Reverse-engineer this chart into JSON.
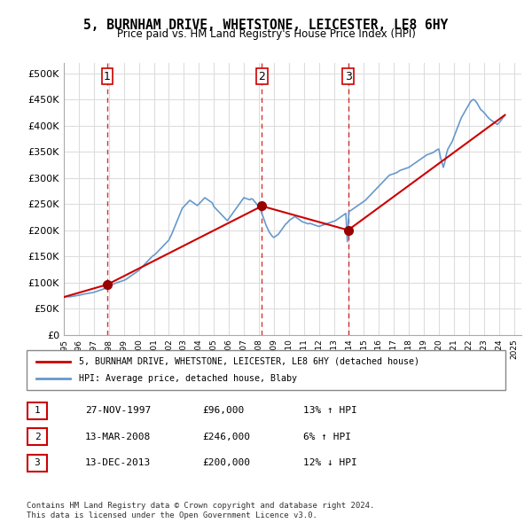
{
  "title": "5, BURNHAM DRIVE, WHETSTONE, LEICESTER, LE8 6HY",
  "subtitle": "Price paid vs. HM Land Registry's House Price Index (HPI)",
  "ylabel_values": [
    "£0",
    "£50K",
    "£100K",
    "£150K",
    "£200K",
    "£250K",
    "£300K",
    "£350K",
    "£400K",
    "£450K",
    "£500K"
  ],
  "yticks": [
    0,
    50000,
    100000,
    150000,
    200000,
    250000,
    300000,
    350000,
    400000,
    450000,
    500000
  ],
  "ylim": [
    0,
    520000
  ],
  "xmin": 1995.0,
  "xmax": 2025.5,
  "sales": [
    {
      "year": 1997.9,
      "price": 96000,
      "label": "1"
    },
    {
      "year": 2008.2,
      "price": 246000,
      "label": "2"
    },
    {
      "year": 2013.95,
      "price": 200000,
      "label": "3"
    }
  ],
  "vlines": [
    1997.9,
    2008.2,
    2013.95
  ],
  "hpi_color": "#6699cc",
  "price_color": "#cc0000",
  "dot_color": "#990000",
  "vline_color": "#cc0000",
  "grid_color": "#dddddd",
  "background_color": "#ffffff",
  "legend_entries": [
    "5, BURNHAM DRIVE, WHETSTONE, LEICESTER, LE8 6HY (detached house)",
    "HPI: Average price, detached house, Blaby"
  ],
  "table_rows": [
    {
      "num": "1",
      "date": "27-NOV-1997",
      "price": "£96,000",
      "hpi": "13% ↑ HPI"
    },
    {
      "num": "2",
      "date": "13-MAR-2008",
      "price": "£246,000",
      "hpi": "6% ↑ HPI"
    },
    {
      "num": "3",
      "date": "13-DEC-2013",
      "price": "£200,000",
      "hpi": "12% ↓ HPI"
    }
  ],
  "footer": "Contains HM Land Registry data © Crown copyright and database right 2024.\nThis data is licensed under the Open Government Licence v3.0.",
  "hpi_data_x": [
    1995.0,
    1995.1,
    1995.2,
    1995.3,
    1995.4,
    1995.5,
    1995.6,
    1995.7,
    1995.8,
    1995.9,
    1996.0,
    1996.1,
    1996.2,
    1996.3,
    1996.4,
    1996.5,
    1996.6,
    1996.7,
    1996.8,
    1996.9,
    1997.0,
    1997.1,
    1997.2,
    1997.3,
    1997.4,
    1997.5,
    1997.6,
    1997.7,
    1997.8,
    1997.9,
    1998.0,
    1998.1,
    1998.2,
    1998.3,
    1998.4,
    1998.5,
    1998.6,
    1998.7,
    1998.8,
    1998.9,
    1999.0,
    1999.1,
    1999.2,
    1999.3,
    1999.4,
    1999.5,
    1999.6,
    1999.7,
    1999.8,
    1999.9,
    2000.0,
    2000.1,
    2000.2,
    2000.3,
    2000.4,
    2000.5,
    2000.6,
    2000.7,
    2000.8,
    2000.9,
    2001.0,
    2001.1,
    2001.2,
    2001.3,
    2001.4,
    2001.5,
    2001.6,
    2001.7,
    2001.8,
    2001.9,
    2002.0,
    2002.1,
    2002.2,
    2002.3,
    2002.4,
    2002.5,
    2002.6,
    2002.7,
    2002.8,
    2002.9,
    2003.0,
    2003.1,
    2003.2,
    2003.3,
    2003.4,
    2003.5,
    2003.6,
    2003.7,
    2003.8,
    2003.9,
    2004.0,
    2004.1,
    2004.2,
    2004.3,
    2004.4,
    2004.5,
    2004.6,
    2004.7,
    2004.8,
    2004.9,
    2005.0,
    2005.1,
    2005.2,
    2005.3,
    2005.4,
    2005.5,
    2005.6,
    2005.7,
    2005.8,
    2005.9,
    2006.0,
    2006.1,
    2006.2,
    2006.3,
    2006.4,
    2006.5,
    2006.6,
    2006.7,
    2006.8,
    2006.9,
    2007.0,
    2007.1,
    2007.2,
    2007.3,
    2007.4,
    2007.5,
    2007.6,
    2007.7,
    2007.8,
    2007.9,
    2008.0,
    2008.1,
    2008.2,
    2008.3,
    2008.4,
    2008.5,
    2008.6,
    2008.7,
    2008.8,
    2008.9,
    2009.0,
    2009.1,
    2009.2,
    2009.3,
    2009.4,
    2009.5,
    2009.6,
    2009.7,
    2009.8,
    2009.9,
    2010.0,
    2010.1,
    2010.2,
    2010.3,
    2010.4,
    2010.5,
    2010.6,
    2010.7,
    2010.8,
    2010.9,
    2011.0,
    2011.1,
    2011.2,
    2011.3,
    2011.4,
    2011.5,
    2011.6,
    2011.7,
    2011.8,
    2011.9,
    2012.0,
    2012.1,
    2012.2,
    2012.3,
    2012.4,
    2012.5,
    2012.6,
    2012.7,
    2012.8,
    2012.9,
    2013.0,
    2013.1,
    2013.2,
    2013.3,
    2013.4,
    2013.5,
    2013.6,
    2013.7,
    2013.8,
    2013.9,
    2014.0,
    2014.1,
    2014.2,
    2014.3,
    2014.4,
    2014.5,
    2014.6,
    2014.7,
    2014.8,
    2014.9,
    2015.0,
    2015.1,
    2015.2,
    2015.3,
    2015.4,
    2015.5,
    2015.6,
    2015.7,
    2015.8,
    2015.9,
    2016.0,
    2016.1,
    2016.2,
    2016.3,
    2016.4,
    2016.5,
    2016.6,
    2016.7,
    2016.8,
    2016.9,
    2017.0,
    2017.1,
    2017.2,
    2017.3,
    2017.4,
    2017.5,
    2017.6,
    2017.7,
    2017.8,
    2017.9,
    2018.0,
    2018.1,
    2018.2,
    2018.3,
    2018.4,
    2018.5,
    2018.6,
    2018.7,
    2018.8,
    2018.9,
    2019.0,
    2019.1,
    2019.2,
    2019.3,
    2019.4,
    2019.5,
    2019.6,
    2019.7,
    2019.8,
    2019.9,
    2020.0,
    2020.1,
    2020.2,
    2020.3,
    2020.4,
    2020.5,
    2020.6,
    2020.7,
    2020.8,
    2020.9,
    2021.0,
    2021.1,
    2021.2,
    2021.3,
    2021.4,
    2021.5,
    2021.6,
    2021.7,
    2021.8,
    2021.9,
    2022.0,
    2022.1,
    2022.2,
    2022.3,
    2022.4,
    2022.5,
    2022.6,
    2022.7,
    2022.8,
    2022.9,
    2023.0,
    2023.1,
    2023.2,
    2023.3,
    2023.4,
    2023.5,
    2023.6,
    2023.7,
    2023.8,
    2023.9,
    2024.0,
    2024.1,
    2024.2,
    2024.3,
    2024.4
  ],
  "hpi_data_y": [
    72000,
    72500,
    73000,
    72800,
    72600,
    73000,
    73500,
    74000,
    74500,
    75000,
    75500,
    76000,
    76800,
    77500,
    78000,
    78500,
    79000,
    79500,
    80000,
    80500,
    81000,
    82000,
    83000,
    84000,
    85000,
    86000,
    87000,
    88000,
    89500,
    91000,
    93000,
    94500,
    96000,
    97000,
    98000,
    99000,
    100000,
    101000,
    102000,
    103000,
    104000,
    105000,
    107000,
    109000,
    111000,
    113000,
    115000,
    117000,
    119000,
    121000,
    123000,
    126000,
    129000,
    132000,
    135000,
    138000,
    141000,
    144000,
    147000,
    150000,
    152000,
    154000,
    157000,
    160000,
    163000,
    166000,
    169000,
    172000,
    175000,
    178000,
    181000,
    187000,
    193000,
    200000,
    207000,
    214000,
    221000,
    228000,
    235000,
    242000,
    245000,
    248000,
    251000,
    254000,
    257000,
    255000,
    253000,
    251000,
    249000,
    247000,
    250000,
    253000,
    256000,
    259000,
    262000,
    260000,
    258000,
    256000,
    254000,
    252000,
    245000,
    242000,
    239000,
    236000,
    233000,
    230000,
    227000,
    224000,
    221000,
    218000,
    222000,
    226000,
    230000,
    234000,
    238000,
    242000,
    246000,
    250000,
    254000,
    258000,
    262000,
    261000,
    260000,
    259000,
    258000,
    260000,
    259000,
    255000,
    252000,
    248000,
    244000,
    240000,
    232000,
    224000,
    216000,
    208000,
    202000,
    196000,
    192000,
    188000,
    186000,
    188000,
    190000,
    192000,
    196000,
    200000,
    204000,
    208000,
    212000,
    214000,
    218000,
    220000,
    222000,
    224000,
    226000,
    224000,
    222000,
    220000,
    218000,
    216000,
    215000,
    214000,
    213000,
    212000,
    213000,
    212000,
    211000,
    210000,
    209000,
    208000,
    207000,
    208000,
    209000,
    210000,
    211000,
    212000,
    213000,
    214000,
    215000,
    216000,
    217000,
    218000,
    220000,
    222000,
    224000,
    226000,
    228000,
    230000,
    232000,
    178000,
    235000,
    237000,
    239000,
    241000,
    243000,
    245000,
    247000,
    249000,
    251000,
    253000,
    255000,
    257000,
    260000,
    263000,
    266000,
    269000,
    272000,
    275000,
    278000,
    281000,
    284000,
    287000,
    290000,
    293000,
    296000,
    299000,
    302000,
    305000,
    306000,
    307000,
    308000,
    309000,
    310000,
    312000,
    314000,
    315000,
    316000,
    317000,
    318000,
    319000,
    320000,
    322000,
    324000,
    326000,
    328000,
    330000,
    332000,
    334000,
    336000,
    338000,
    340000,
    342000,
    344000,
    345000,
    346000,
    347000,
    348000,
    350000,
    352000,
    354000,
    355000,
    340000,
    330000,
    320000,
    330000,
    345000,
    355000,
    360000,
    365000,
    370000,
    378000,
    385000,
    393000,
    400000,
    408000,
    415000,
    420000,
    425000,
    430000,
    435000,
    440000,
    445000,
    448000,
    450000,
    448000,
    445000,
    440000,
    435000,
    430000,
    428000,
    425000,
    422000,
    418000,
    415000,
    412000,
    410000,
    408000,
    406000,
    404000,
    402000,
    405000,
    408000,
    412000,
    416000,
    420000
  ],
  "price_data_x": [
    1995.0,
    1997.9,
    2008.2,
    2013.95,
    2024.4
  ],
  "price_data_y": [
    72000,
    96000,
    246000,
    200000,
    420000
  ]
}
